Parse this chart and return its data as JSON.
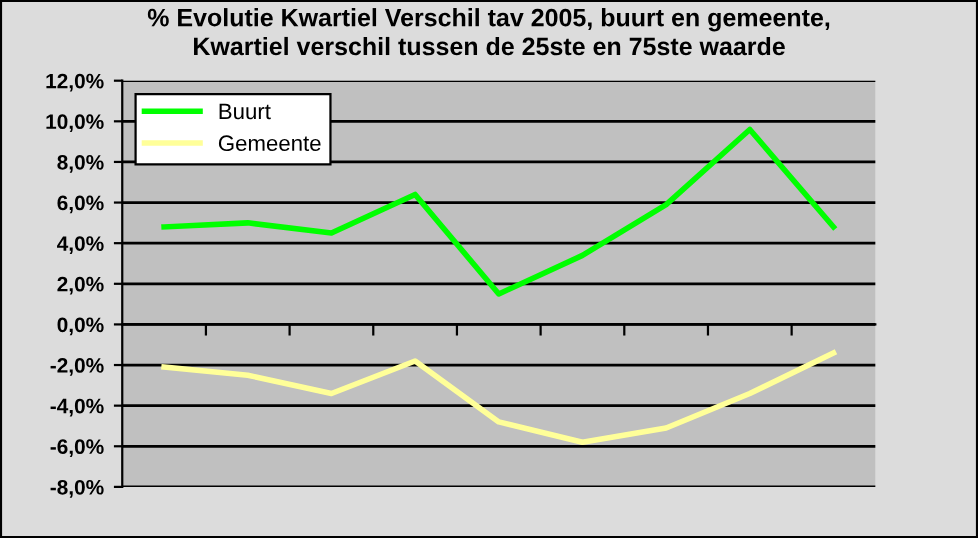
{
  "chart_data": {
    "type": "line",
    "title": "% Evolutie Kwartiel Verschil tav 2005, buurt en gemeente,\nKwartiel verschil tussen de 25ste en 75ste waarde",
    "categories": [
      null,
      null,
      null,
      null,
      null,
      null,
      null,
      null,
      null
    ],
    "series": [
      {
        "name": "Buurt",
        "color": "#00ff00",
        "values": [
          4.8,
          5.0,
          4.5,
          6.4,
          1.5,
          3.4,
          5.9,
          9.6,
          4.8
        ]
      },
      {
        "name": "Gemeente",
        "color": "#ffff99",
        "values": [
          -2.1,
          -2.5,
          -3.4,
          -1.8,
          -4.8,
          -5.8,
          -5.1,
          -3.4,
          -1.4
        ]
      }
    ],
    "ylim": [
      -8,
      12
    ],
    "yticks": [
      {
        "value": -8,
        "label": "-8,0%"
      },
      {
        "value": -6,
        "label": "-6,0%"
      },
      {
        "value": -4,
        "label": "-4,0%"
      },
      {
        "value": -2,
        "label": "-2,0%"
      },
      {
        "value": 0,
        "label": "0,0%"
      },
      {
        "value": 2,
        "label": "2,0%"
      },
      {
        "value": 4,
        "label": "4,0%"
      },
      {
        "value": 6,
        "label": "6,0%"
      },
      {
        "value": 8,
        "label": "8,0%"
      },
      {
        "value": 10,
        "label": "10,0%"
      },
      {
        "value": 12,
        "label": "12,0%"
      }
    ],
    "grid": "y",
    "legend": "top left",
    "marker": "none",
    "line_style": "solid"
  }
}
